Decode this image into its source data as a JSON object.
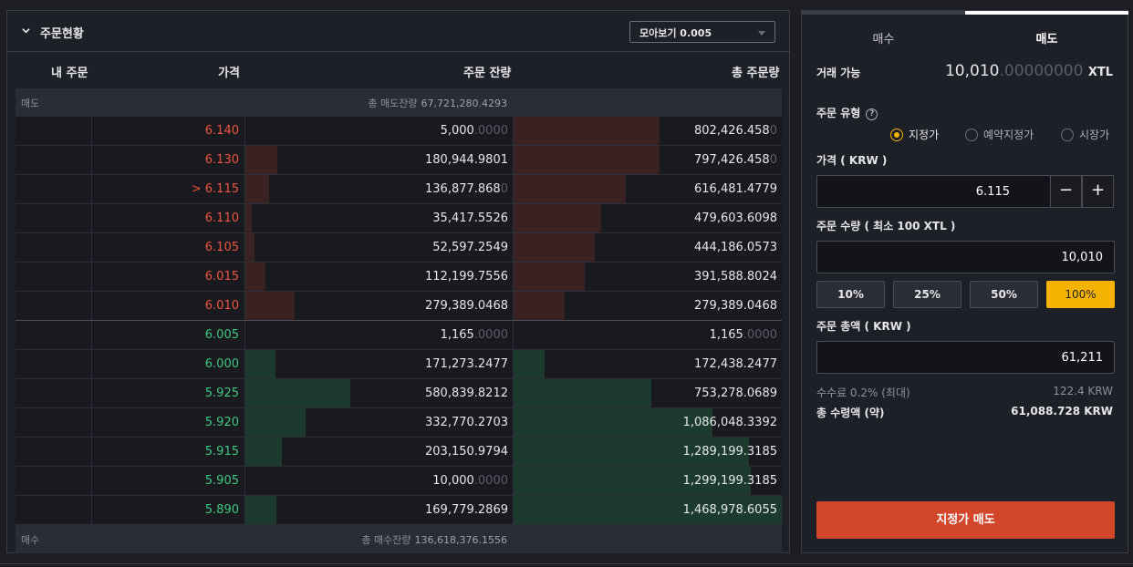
{
  "orderbook": {
    "title": "주문현황",
    "group_select": "모아보기 0.005",
    "columns": {
      "my_order": "내 주문",
      "price": "가격",
      "remaining": "주문 잔량",
      "total": "총 주문량"
    },
    "ask_summary": {
      "label": "매도",
      "total_label": "총 매도잔량",
      "total_value": "67,721,280.4293"
    },
    "bid_summary": {
      "label": "매수",
      "total_label": "총 매수잔량",
      "total_value": "136,618,376.1556"
    },
    "asks": [
      {
        "price": "6.140",
        "qty": "5,000",
        "qty_dim": ".0000",
        "qty_bar": 0.0,
        "total": "802,426.458",
        "total_dim": "0",
        "total_bar": 0.545
      },
      {
        "price": "6.130",
        "qty": "180,944.9801",
        "qty_dim": "",
        "qty_bar": 0.12,
        "total": "797,426.458",
        "total_dim": "0",
        "total_bar": 0.543
      },
      {
        "price": "> 6.115",
        "qty": "136,877.868",
        "qty_dim": "0",
        "qty_bar": 0.09,
        "total": "616,481.4779",
        "total_dim": "",
        "total_bar": 0.42
      },
      {
        "price": "6.110",
        "qty": "35,417.5526",
        "qty_dim": "",
        "qty_bar": 0.023,
        "total": "479,603.6098",
        "total_dim": "",
        "total_bar": 0.327
      },
      {
        "price": "6.105",
        "qty": "52,597.2549",
        "qty_dim": "",
        "qty_bar": 0.034,
        "total": "444,186.0573",
        "total_dim": "",
        "total_bar": 0.302
      },
      {
        "price": "6.015",
        "qty": "112,199.7556",
        "qty_dim": "",
        "qty_bar": 0.074,
        "total": "391,588.8024",
        "total_dim": "",
        "total_bar": 0.267
      },
      {
        "price": "6.010",
        "qty": "279,389.0468",
        "qty_dim": "",
        "qty_bar": 0.184,
        "total": "279,389.0468",
        "total_dim": "",
        "total_bar": 0.19
      }
    ],
    "bids": [
      {
        "price": "6.005",
        "qty": "1,165",
        "qty_dim": ".0000",
        "qty_bar": 0.0,
        "total": "1,165",
        "total_dim": ".0000",
        "total_bar": 0.0
      },
      {
        "price": "6.000",
        "qty": "171,273.2477",
        "qty_dim": "",
        "qty_bar": 0.113,
        "total": "172,438.2477",
        "total_dim": "",
        "total_bar": 0.117
      },
      {
        "price": "5.925",
        "qty": "580,839.8212",
        "qty_dim": "",
        "qty_bar": 0.39,
        "total": "753,278.0689",
        "total_dim": "",
        "total_bar": 0.513
      },
      {
        "price": "5.920",
        "qty": "332,770.2703",
        "qty_dim": "",
        "qty_bar": 0.224,
        "total": "1,086,048.3392",
        "total_dim": "",
        "total_bar": 0.74
      },
      {
        "price": "5.915",
        "qty": "203,150.9794",
        "qty_dim": "",
        "qty_bar": 0.136,
        "total": "1,289,199.3185",
        "total_dim": "",
        "total_bar": 0.878
      },
      {
        "price": "5.905",
        "qty": "10,000",
        "qty_dim": ".0000",
        "qty_bar": 0.0,
        "total": "1,299,199.3185",
        "total_dim": "",
        "total_bar": 0.885
      },
      {
        "price": "5.890",
        "qty": "169,779.2869",
        "qty_dim": "",
        "qty_bar": 0.114,
        "total": "1,468,978.6055",
        "total_dim": "",
        "total_bar": 1.0
      }
    ]
  },
  "trade": {
    "tab_buy": "매수",
    "tab_sell": "매도",
    "available_label": "거래 가능",
    "available_int": "10,010",
    "available_dim": ".00000000",
    "available_unit": "XTL",
    "order_type_label": "주문 유형",
    "help_glyph": "?",
    "order_types": [
      "지정가",
      "예약지정가",
      "시장가"
    ],
    "price_label": "가격 ( KRW )",
    "price_value": "6.115",
    "minus": "−",
    "plus": "+",
    "qty_label": "주문 수량 ( 최소 100 XTL )",
    "qty_value": "10,010",
    "percents": [
      "10%",
      "25%",
      "50%",
      "100%"
    ],
    "amount_label": "주문 총액 ( KRW )",
    "amount_value": "61,211",
    "fee_label": "수수료 0.2% (최대)",
    "fee_value": "122.4 KRW",
    "receive_label": "총 수령액 (약)",
    "receive_value": "61,088.728 KRW",
    "submit_label": "지정가 매도"
  }
}
